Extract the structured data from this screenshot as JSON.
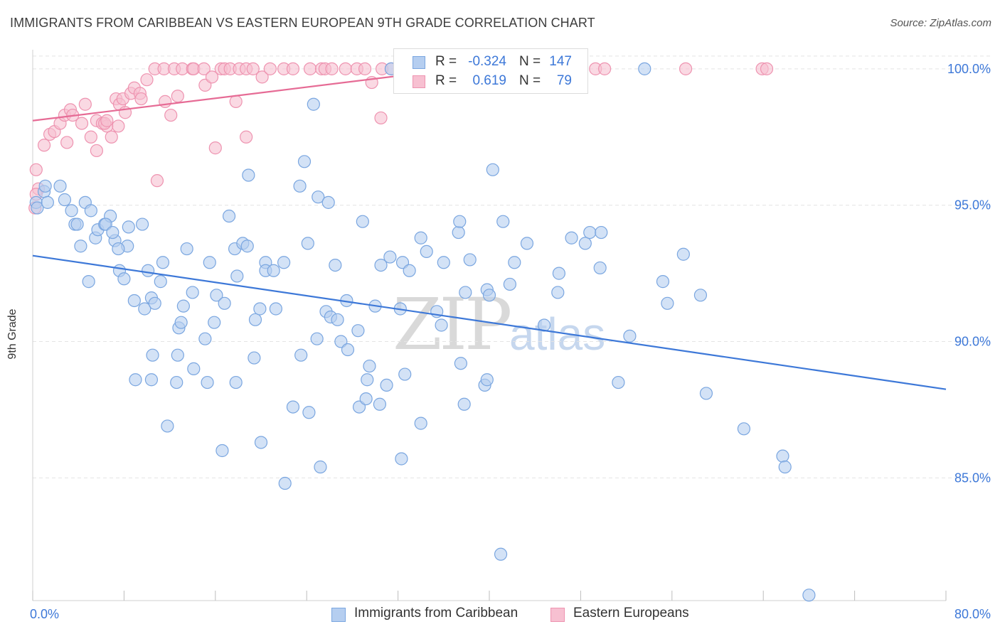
{
  "title": "IMMIGRANTS FROM CARIBBEAN VS EASTERN EUROPEAN 9TH GRADE CORRELATION CHART",
  "source": "Source: ZipAtlas.com",
  "watermark": {
    "zip": "ZIP",
    "atlas": "atlas"
  },
  "legend": [
    {
      "r_label": "R =",
      "r_value": "-0.324",
      "n_label": "N =",
      "n_value": "147"
    },
    {
      "r_label": "R =",
      "r_value": "0.619",
      "n_label": "N =",
      "n_value": "79"
    }
  ],
  "bottom_legend": [
    "Immigrants from Caribbean",
    "Eastern Europeans"
  ],
  "colors": {
    "blue_fill": "#b5cef0",
    "blue_stroke": "#7aa6e0",
    "blue_line": "#3d78d8",
    "pink_fill": "#f7c0d1",
    "pink_stroke": "#ee93b0",
    "pink_line": "#e66b95",
    "tick_label": "#3d78d8",
    "grid": "#e4e4e4"
  },
  "chart_data": {
    "type": "scatter",
    "title": "IMMIGRANTS FROM CARIBBEAN VS EASTERN EUROPEAN 9TH GRADE CORRELATION CHART",
    "xlabel": "",
    "ylabel": "9th Grade",
    "xlim": [
      0,
      80
    ],
    "ylim": [
      80.5,
      100.7
    ],
    "x_tick_labels": [
      "0.0%",
      "80.0%"
    ],
    "y_ticks": [
      85,
      90,
      95,
      100
    ],
    "y_tick_labels": [
      "85.0%",
      "90.0%",
      "95.0%",
      "100.0%"
    ],
    "grid": "horizontal dashed",
    "legend_position": "top-center",
    "series": [
      {
        "name": "Immigrants from Caribbean",
        "r": -0.324,
        "n": 147,
        "trend": {
          "x": [
            0,
            80
          ],
          "y": [
            93.15,
            88.25
          ]
        },
        "points": [
          [
            0.3,
            95.1
          ],
          [
            0.4,
            94.9
          ],
          [
            1.0,
            95.5
          ],
          [
            1.1,
            95.7
          ],
          [
            1.3,
            95.1
          ],
          [
            2.4,
            95.7
          ],
          [
            2.8,
            95.2
          ],
          [
            3.4,
            94.8
          ],
          [
            3.7,
            94.3
          ],
          [
            3.9,
            94.3
          ],
          [
            4.6,
            95.1
          ],
          [
            5.1,
            94.8
          ],
          [
            5.5,
            93.8
          ],
          [
            5.7,
            94.1
          ],
          [
            6.3,
            94.3
          ],
          [
            6.8,
            94.6
          ],
          [
            6.4,
            94.3
          ],
          [
            7.2,
            93.7
          ],
          [
            7.0,
            94.0
          ],
          [
            8.3,
            93.5
          ],
          [
            8.4,
            94.2
          ],
          [
            9.6,
            94.3
          ],
          [
            4.2,
            93.5
          ],
          [
            4.9,
            92.2
          ],
          [
            7.6,
            92.6
          ],
          [
            8.0,
            92.3
          ],
          [
            10.1,
            92.6
          ],
          [
            11.2,
            92.2
          ],
          [
            11.4,
            92.9
          ],
          [
            8.9,
            91.5
          ],
          [
            9.8,
            91.2
          ],
          [
            10.4,
            91.6
          ],
          [
            10.7,
            91.4
          ],
          [
            12.8,
            90.5
          ],
          [
            13.0,
            90.7
          ],
          [
            13.2,
            91.3
          ],
          [
            13.5,
            93.4
          ],
          [
            14.0,
            91.8
          ],
          [
            15.1,
            90.1
          ],
          [
            15.5,
            92.9
          ],
          [
            15.9,
            90.7
          ],
          [
            16.1,
            91.7
          ],
          [
            16.8,
            91.4
          ],
          [
            17.2,
            94.6
          ],
          [
            17.7,
            93.4
          ],
          [
            17.9,
            92.4
          ],
          [
            18.4,
            93.6
          ],
          [
            18.8,
            93.5
          ],
          [
            18.9,
            96.1
          ],
          [
            19.5,
            90.8
          ],
          [
            19.9,
            91.2
          ],
          [
            20.4,
            92.9
          ],
          [
            20.4,
            92.6
          ],
          [
            21.1,
            92.6
          ],
          [
            21.3,
            91.2
          ],
          [
            22.0,
            92.9
          ],
          [
            23.4,
            95.7
          ],
          [
            23.8,
            96.6
          ],
          [
            24.1,
            93.6
          ],
          [
            25.0,
            95.3
          ],
          [
            25.9,
            95.1
          ],
          [
            24.9,
            90.1
          ],
          [
            25.7,
            91.1
          ],
          [
            26.1,
            90.9
          ],
          [
            26.7,
            90.8
          ],
          [
            26.5,
            92.8
          ],
          [
            27.0,
            90.0
          ],
          [
            27.5,
            91.5
          ],
          [
            27.6,
            89.7
          ],
          [
            28.5,
            90.4
          ],
          [
            28.9,
            94.4
          ],
          [
            30.0,
            91.3
          ],
          [
            30.5,
            92.8
          ],
          [
            31.3,
            93.1
          ],
          [
            32.2,
            91.2
          ],
          [
            32.4,
            92.9
          ],
          [
            33.0,
            92.6
          ],
          [
            34.0,
            93.8
          ],
          [
            34.5,
            93.3
          ],
          [
            35.4,
            91.1
          ],
          [
            35.8,
            90.6
          ],
          [
            36.0,
            92.9
          ],
          [
            37.3,
            94.0
          ],
          [
            37.4,
            94.4
          ],
          [
            37.9,
            91.8
          ],
          [
            38.3,
            93.0
          ],
          [
            39.8,
            91.9
          ],
          [
            40.0,
            91.7
          ],
          [
            40.3,
            96.3
          ],
          [
            41.2,
            94.4
          ],
          [
            41.8,
            92.1
          ],
          [
            42.2,
            92.9
          ],
          [
            43.3,
            93.6
          ],
          [
            44.8,
            90.6
          ],
          [
            46.1,
            92.5
          ],
          [
            46.0,
            91.8
          ],
          [
            47.2,
            93.8
          ],
          [
            48.4,
            93.6
          ],
          [
            48.8,
            94.0
          ],
          [
            49.7,
            92.7
          ],
          [
            49.8,
            94.0
          ],
          [
            24.6,
            98.7
          ],
          [
            31.4,
            100.0
          ],
          [
            53.6,
            100.0
          ],
          [
            52.3,
            90.2
          ],
          [
            55.6,
            91.4
          ],
          [
            57.0,
            93.2
          ],
          [
            55.2,
            92.2
          ],
          [
            58.5,
            91.7
          ],
          [
            10.5,
            89.5
          ],
          [
            9.0,
            88.6
          ],
          [
            10.4,
            88.6
          ],
          [
            12.7,
            89.5
          ],
          [
            12.6,
            88.5
          ],
          [
            14.1,
            89.0
          ],
          [
            15.3,
            88.5
          ],
          [
            17.8,
            88.5
          ],
          [
            19.4,
            89.4
          ],
          [
            22.8,
            87.6
          ],
          [
            24.2,
            87.4
          ],
          [
            23.5,
            89.5
          ],
          [
            28.6,
            87.6
          ],
          [
            29.2,
            87.9
          ],
          [
            29.3,
            88.6
          ],
          [
            29.5,
            89.1
          ],
          [
            30.4,
            87.7
          ],
          [
            31.0,
            88.4
          ],
          [
            32.6,
            88.8
          ],
          [
            34.0,
            87.0
          ],
          [
            37.5,
            89.2
          ],
          [
            37.8,
            87.7
          ],
          [
            39.6,
            88.4
          ],
          [
            39.8,
            88.6
          ],
          [
            51.3,
            88.5
          ],
          [
            59.0,
            88.1
          ],
          [
            62.3,
            86.8
          ],
          [
            65.7,
            85.8
          ],
          [
            65.9,
            85.4
          ],
          [
            11.8,
            86.9
          ],
          [
            16.6,
            86.0
          ],
          [
            20.0,
            86.3
          ],
          [
            25.2,
            85.4
          ],
          [
            32.3,
            85.7
          ],
          [
            22.1,
            84.8
          ],
          [
            41.0,
            82.2
          ],
          [
            68.0,
            80.7
          ],
          [
            7.5,
            93.4
          ]
        ]
      },
      {
        "name": "Eastern Europeans",
        "r": 0.619,
        "n": 79,
        "trend": {
          "x": [
            0,
            40
          ],
          "y": [
            98.1,
            100.15
          ]
        },
        "points": [
          [
            0.3,
            96.3
          ],
          [
            0.5,
            95.6
          ],
          [
            0.3,
            95.4
          ],
          [
            0.2,
            94.9
          ],
          [
            1.0,
            97.2
          ],
          [
            1.5,
            97.6
          ],
          [
            1.9,
            97.7
          ],
          [
            2.4,
            98.0
          ],
          [
            2.8,
            98.3
          ],
          [
            3.3,
            98.5
          ],
          [
            3.5,
            98.3
          ],
          [
            4.3,
            98.0
          ],
          [
            4.6,
            98.7
          ],
          [
            5.1,
            97.5
          ],
          [
            5.6,
            98.1
          ],
          [
            5.6,
            97.0
          ],
          [
            6.1,
            98.0
          ],
          [
            6.5,
            97.9
          ],
          [
            6.3,
            98.0
          ],
          [
            6.5,
            98.1
          ],
          [
            7.3,
            98.9
          ],
          [
            7.5,
            97.9
          ],
          [
            7.6,
            98.7
          ],
          [
            7.9,
            98.9
          ],
          [
            8.1,
            98.4
          ],
          [
            8.6,
            99.1
          ],
          [
            8.9,
            99.3
          ],
          [
            9.4,
            99.1
          ],
          [
            9.5,
            98.9
          ],
          [
            10.0,
            99.6
          ],
          [
            10.7,
            100.0
          ],
          [
            11.6,
            98.8
          ],
          [
            11.5,
            100.0
          ],
          [
            12.1,
            98.3
          ],
          [
            12.4,
            100.0
          ],
          [
            12.7,
            99.0
          ],
          [
            13.1,
            100.0
          ],
          [
            14.0,
            100.0
          ],
          [
            14.1,
            100.0
          ],
          [
            15.0,
            100.0
          ],
          [
            15.1,
            99.4
          ],
          [
            15.7,
            99.7
          ],
          [
            16.5,
            100.0
          ],
          [
            16.8,
            100.0
          ],
          [
            17.3,
            100.0
          ],
          [
            17.8,
            98.8
          ],
          [
            18.1,
            100.0
          ],
          [
            18.7,
            100.0
          ],
          [
            19.3,
            100.0
          ],
          [
            20.1,
            99.7
          ],
          [
            20.8,
            100.0
          ],
          [
            22.0,
            100.0
          ],
          [
            22.8,
            100.0
          ],
          [
            24.3,
            100.0
          ],
          [
            25.3,
            100.0
          ],
          [
            25.6,
            100.0
          ],
          [
            26.2,
            100.0
          ],
          [
            27.4,
            100.0
          ],
          [
            28.4,
            100.0
          ],
          [
            29.1,
            100.0
          ],
          [
            29.7,
            99.5
          ],
          [
            30.5,
            98.2
          ],
          [
            30.6,
            100.0
          ],
          [
            31.4,
            100.0
          ],
          [
            32.5,
            100.0
          ],
          [
            33.5,
            100.0
          ],
          [
            36.5,
            100.0
          ],
          [
            38.5,
            100.0
          ],
          [
            40.1,
            100.0
          ],
          [
            49.3,
            100.0
          ],
          [
            50.1,
            100.0
          ],
          [
            57.2,
            100.0
          ],
          [
            63.9,
            100.0
          ],
          [
            64.3,
            100.0
          ],
          [
            16.0,
            97.1
          ],
          [
            18.7,
            97.5
          ],
          [
            10.9,
            95.9
          ],
          [
            3.0,
            97.3
          ],
          [
            6.9,
            97.5
          ]
        ]
      }
    ]
  }
}
